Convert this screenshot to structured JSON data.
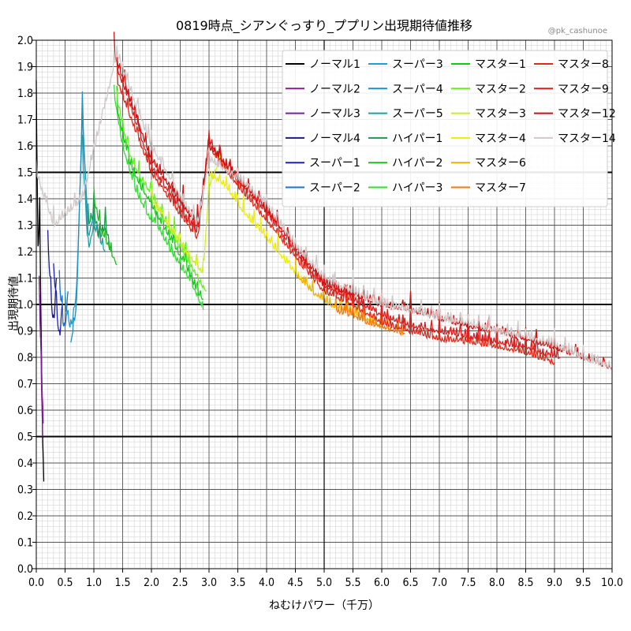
{
  "chart_data": {
    "type": "line",
    "title": "0819時点_シアンぐっすり_ププリン出現期待値推移",
    "credit": "@pk_cashunoe",
    "xlabel": "ねむけパワー（千万）",
    "ylabel": "出現期待値",
    "xlim": [
      0.0,
      10.0
    ],
    "ylim": [
      0.0,
      2.0
    ],
    "xticks": [
      "0.0",
      "0.5",
      "1.0",
      "1.5",
      "2.0",
      "2.5",
      "3.0",
      "3.5",
      "4.0",
      "4.5",
      "5.0",
      "5.5",
      "6.0",
      "6.5",
      "7.0",
      "7.5",
      "8.0",
      "8.5",
      "9.0",
      "9.5",
      "10.0"
    ],
    "yticks": [
      "0.0",
      "0.1",
      "0.2",
      "0.3",
      "0.4",
      "0.5",
      "0.6",
      "0.7",
      "0.8",
      "0.9",
      "1.0",
      "1.1",
      "1.2",
      "1.3",
      "1.4",
      "1.5",
      "1.6",
      "1.7",
      "1.8",
      "1.9",
      "2.0"
    ],
    "reference_lines": [
      0.5,
      1.0,
      1.5
    ],
    "grid": true,
    "legend_position": "top-right",
    "series": [
      {
        "name": "ノーマル1",
        "color": "#000000",
        "x": [
          0.0,
          0.03,
          0.06,
          0.1,
          0.13
        ],
        "y": [
          1.8,
          1.2,
          1.35,
          0.6,
          0.33
        ]
      },
      {
        "name": "ノーマル2",
        "color": "#8b1a8b",
        "x": [
          0.05,
          0.08,
          0.11
        ],
        "y": [
          1.1,
          0.8,
          0.5
        ]
      },
      {
        "name": "ノーマル3",
        "color": "#7a1fa2",
        "x": [
          0.06,
          0.09,
          0.12
        ],
        "y": [
          1.0,
          0.75,
          0.55
        ]
      },
      {
        "name": "ノーマル4",
        "color": "#1a1a8c",
        "x": [
          0.2,
          0.25,
          0.3,
          0.35
        ],
        "y": [
          1.25,
          1.05,
          0.9,
          1.1
        ]
      },
      {
        "name": "スーパー1",
        "color": "#1f1fbf",
        "x": [
          0.3,
          0.35,
          0.4,
          0.45
        ],
        "y": [
          1.15,
          1.0,
          0.85,
          1.0
        ]
      },
      {
        "name": "スーパー2",
        "color": "#1f6fd6",
        "x": [
          0.4,
          0.45,
          0.5,
          0.55
        ],
        "y": [
          1.1,
          0.95,
          0.9,
          1.05
        ]
      },
      {
        "name": "スーパー3",
        "color": "#1f9fd6",
        "x": [
          0.5,
          0.6,
          0.7,
          0.8,
          0.9
        ],
        "y": [
          1.0,
          0.9,
          1.05,
          1.7,
          1.3
        ]
      },
      {
        "name": "スーパー4",
        "color": "#1f8fbf",
        "x": [
          0.6,
          0.7,
          0.8,
          0.9,
          1.0
        ],
        "y": [
          0.85,
          1.0,
          1.75,
          1.25,
          1.35
        ]
      },
      {
        "name": "スーパー5",
        "color": "#20a0a0",
        "x": [
          0.8,
          0.9,
          1.0,
          1.1,
          1.2
        ],
        "y": [
          1.6,
          1.2,
          1.3,
          1.25,
          1.2
        ]
      },
      {
        "name": "ハイパー1",
        "color": "#1a9a4a",
        "x": [
          0.9,
          1.0,
          1.1,
          1.2,
          1.3
        ],
        "y": [
          1.3,
          1.35,
          1.25,
          1.3,
          1.2
        ]
      },
      {
        "name": "ハイパー2",
        "color": "#22bb22",
        "x": [
          1.0,
          1.1,
          1.2,
          1.3,
          1.4
        ],
        "y": [
          1.4,
          1.3,
          1.25,
          1.2,
          1.15
        ]
      },
      {
        "name": "ハイパー3",
        "color": "#33dd33",
        "x": [
          1.35,
          1.5,
          1.7,
          1.9,
          2.1,
          2.3,
          2.5,
          2.7,
          2.9
        ],
        "y": [
          1.8,
          1.6,
          1.45,
          1.35,
          1.3,
          1.22,
          1.15,
          1.08,
          0.98
        ]
      },
      {
        "name": "マスター1",
        "color": "#11cc11",
        "x": [
          1.4,
          1.6,
          1.8,
          2.0,
          2.2,
          2.4,
          2.6,
          2.8,
          2.9
        ],
        "y": [
          1.75,
          1.55,
          1.45,
          1.38,
          1.3,
          1.22,
          1.15,
          1.05,
          1.02
        ]
      },
      {
        "name": "マスター2",
        "color": "#66ee22",
        "x": [
          1.4,
          1.6,
          1.8,
          2.0,
          2.2,
          2.4,
          2.6,
          2.8,
          2.95
        ],
        "y": [
          1.78,
          1.58,
          1.48,
          1.42,
          1.33,
          1.25,
          1.18,
          1.1,
          1.05
        ]
      },
      {
        "name": "マスター3",
        "color": "#ccee22",
        "x": [
          2.0,
          2.3,
          2.6,
          2.9,
          3.0,
          3.2
        ],
        "y": [
          1.4,
          1.3,
          1.2,
          1.12,
          1.45,
          1.55
        ]
      },
      {
        "name": "マスター4",
        "color": "#eeee00",
        "x": [
          3.0,
          3.3,
          3.6,
          3.9,
          4.2,
          4.5,
          4.8
        ],
        "y": [
          1.5,
          1.45,
          1.35,
          1.28,
          1.2,
          1.12,
          1.05
        ]
      },
      {
        "name": "マスター6",
        "color": "#f0b000",
        "x": [
          4.5,
          4.8,
          5.1,
          5.4,
          5.7,
          6.0
        ],
        "y": [
          1.12,
          1.05,
          1.0,
          0.98,
          0.95,
          0.92
        ]
      },
      {
        "name": "マスター7",
        "color": "#f07a10",
        "x": [
          5.2,
          5.5,
          5.8,
          6.1,
          6.4
        ],
        "y": [
          0.98,
          0.96,
          0.93,
          0.91,
          0.89
        ]
      },
      {
        "name": "マスター8",
        "color": "#dd2a1a",
        "x": [
          1.4,
          2.0,
          2.8,
          3.0,
          3.5,
          4.0,
          4.5,
          5.0,
          5.5,
          6.0,
          6.5,
          7.0,
          7.5,
          8.0,
          8.5,
          9.0
        ],
        "y": [
          1.85,
          1.5,
          1.25,
          1.6,
          1.45,
          1.32,
          1.18,
          1.05,
          1.0,
          0.93,
          0.9,
          0.87,
          0.86,
          0.84,
          0.82,
          0.78
        ]
      },
      {
        "name": "マスター9",
        "color": "#d81e1e",
        "x": [
          1.4,
          2.0,
          2.8,
          3.0,
          3.5,
          4.0,
          4.5,
          5.0,
          5.5,
          6.0,
          6.5,
          7.0,
          7.5,
          8.0,
          8.5,
          9.1
        ],
        "y": [
          1.9,
          1.52,
          1.27,
          1.62,
          1.47,
          1.35,
          1.2,
          1.07,
          1.02,
          0.96,
          0.92,
          0.9,
          0.88,
          0.86,
          0.84,
          0.8
        ]
      },
      {
        "name": "マスター12",
        "color": "#cc1111",
        "x": [
          1.35,
          2.0,
          2.8,
          3.0,
          3.5,
          4.0,
          4.5,
          5.0,
          5.5,
          6.0,
          6.5,
          7.0,
          7.5,
          8.0,
          8.5,
          9.0,
          9.5,
          10.0
        ],
        "y": [
          1.95,
          1.55,
          1.3,
          1.6,
          1.48,
          1.36,
          1.22,
          1.08,
          1.04,
          1.0,
          0.98,
          0.95,
          0.92,
          0.9,
          0.87,
          0.84,
          0.8,
          0.76
        ]
      },
      {
        "name": "マスター14",
        "color": "#d0c8c8",
        "x": [
          0.0,
          0.3,
          0.8,
          1.4,
          2.0,
          2.8,
          3.0,
          3.5,
          4.0,
          4.5,
          5.0,
          5.5,
          6.0,
          6.5,
          7.0,
          7.5,
          8.0,
          8.5,
          9.0,
          9.5,
          10.0
        ],
        "y": [
          1.5,
          1.3,
          1.4,
          1.95,
          1.6,
          1.3,
          1.55,
          1.48,
          1.38,
          1.22,
          1.1,
          1.05,
          1.0,
          0.98,
          0.95,
          0.93,
          0.9,
          0.88,
          0.85,
          0.8,
          0.76
        ]
      }
    ]
  }
}
